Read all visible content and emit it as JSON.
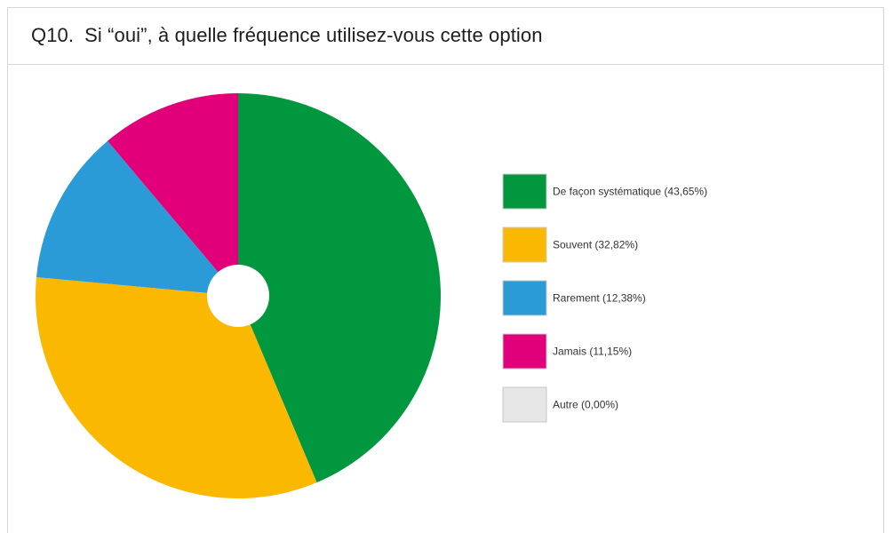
{
  "header": {
    "question_number": "Q10.",
    "question_text": "Si “oui”, à quelle fréquence utilisez-vous cette option"
  },
  "chart_data": {
    "type": "pie",
    "style": "donut-small-hole",
    "start_angle": "top",
    "direction": "clockwise",
    "legend_position": "right",
    "slices": [
      {
        "label": "De façon systématique (43,65%)",
        "value": 43.65,
        "color": "#00973F"
      },
      {
        "label": "Souvent (32,82%)",
        "value": 32.82,
        "color": "#FBB800"
      },
      {
        "label": "Rarement (12,38%)",
        "value": 12.38,
        "color": "#2A9BD6"
      },
      {
        "label": "Jamais (11,15%)",
        "value": 11.15,
        "color": "#E2007A"
      },
      {
        "label": "Autre (0,00%)",
        "value": 0.0,
        "color": "#E6E6E6"
      }
    ]
  }
}
